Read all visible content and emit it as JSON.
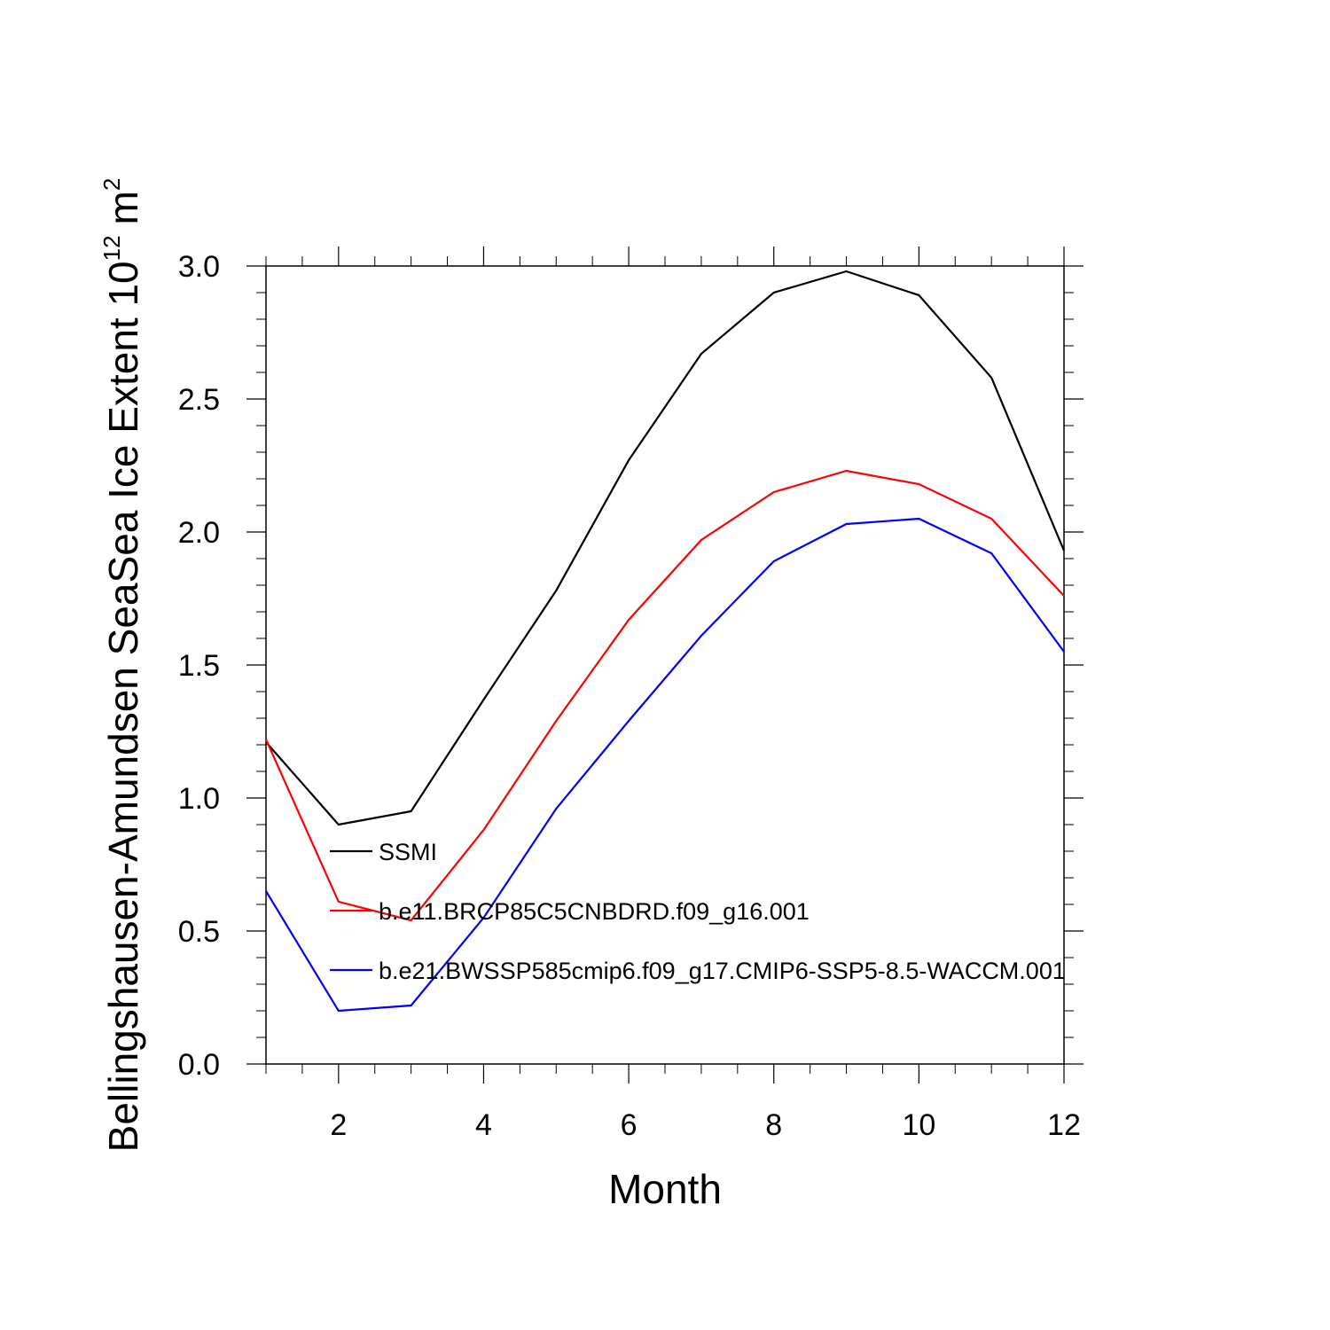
{
  "chart_data": {
    "type": "line",
    "title": "",
    "xlabel": "Month",
    "ylabel": {
      "main": "Bellingshausen-Amundsen SeaSea Ice Extent 10",
      "exponent": "12",
      "unit": "m",
      "unit_exponent": "2"
    },
    "xlim": [
      1,
      12
    ],
    "ylim": [
      0,
      3
    ],
    "x_ticks": [
      2,
      4,
      6,
      8,
      10,
      12
    ],
    "x_tick_labels": [
      "2",
      "4",
      "6",
      "8",
      "10",
      "12"
    ],
    "y_ticks": [
      0,
      0.5,
      1.0,
      1.5,
      2.0,
      2.5,
      3.0
    ],
    "y_tick_labels": [
      "0.0",
      "0.5",
      "1.0",
      "1.5",
      "2.0",
      "2.5",
      "3.0"
    ],
    "grid": false,
    "legend_position": "inside-lower-left",
    "x": [
      1,
      2,
      3,
      4,
      5,
      6,
      7,
      8,
      9,
      10,
      11,
      12
    ],
    "series": [
      {
        "name": "SSMI",
        "color": "#000000",
        "values": [
          1.21,
          0.9,
          0.95,
          1.37,
          1.78,
          2.27,
          2.67,
          2.9,
          2.98,
          2.89,
          2.58,
          1.93
        ]
      },
      {
        "name": "b.e11.BRCP85C5CNBDRD.f09_g16.001",
        "color": "#ff0000",
        "values": [
          1.22,
          0.61,
          0.54,
          0.88,
          1.29,
          1.67,
          1.97,
          2.15,
          2.23,
          2.18,
          2.05,
          1.76
        ]
      },
      {
        "name": "b.e21.BWSSP585cmip6.f09_g17.CMIP6-SSP5-8.5-WACCM.001",
        "color": "#0000ff",
        "values": [
          0.65,
          0.2,
          0.22,
          0.55,
          0.96,
          1.29,
          1.61,
          1.89,
          2.03,
          2.05,
          1.92,
          1.55
        ]
      }
    ]
  }
}
